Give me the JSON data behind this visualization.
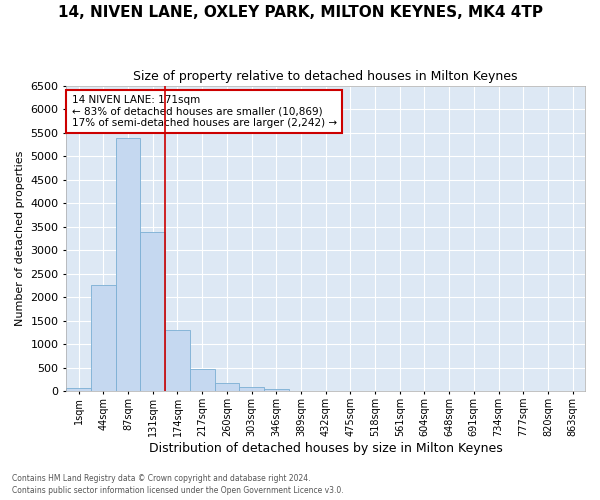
{
  "title": "14, NIVEN LANE, OXLEY PARK, MILTON KEYNES, MK4 4TP",
  "subtitle": "Size of property relative to detached houses in Milton Keynes",
  "xlabel": "Distribution of detached houses by size in Milton Keynes",
  "ylabel": "Number of detached properties",
  "footnote1": "Contains HM Land Registry data © Crown copyright and database right 2024.",
  "footnote2": "Contains public sector information licensed under the Open Government Licence v3.0.",
  "bar_labels": [
    "1sqm",
    "44sqm",
    "87sqm",
    "131sqm",
    "174sqm",
    "217sqm",
    "260sqm",
    "303sqm",
    "346sqm",
    "389sqm",
    "432sqm",
    "475sqm",
    "518sqm",
    "561sqm",
    "604sqm",
    "648sqm",
    "691sqm",
    "734sqm",
    "777sqm",
    "820sqm",
    "863sqm"
  ],
  "bar_values": [
    75,
    2270,
    5390,
    3380,
    1300,
    480,
    185,
    90,
    45,
    0,
    0,
    0,
    0,
    0,
    0,
    0,
    0,
    0,
    0,
    0,
    0
  ],
  "bar_color": "#c5d8f0",
  "bar_edge_color": "#7bafd4",
  "bg_color": "#dde8f4",
  "grid_color": "#ffffff",
  "vline_color": "#cc0000",
  "annotation_line1": "14 NIVEN LANE: 171sqm",
  "annotation_line2": "← 83% of detached houses are smaller (10,869)",
  "annotation_line3": "17% of semi-detached houses are larger (2,242) →",
  "annotation_box_color": "#ffffff",
  "annotation_box_edge": "#cc0000",
  "ylim": [
    0,
    6500
  ],
  "yticks": [
    0,
    500,
    1000,
    1500,
    2000,
    2500,
    3000,
    3500,
    4000,
    4500,
    5000,
    5500,
    6000,
    6500
  ],
  "title_fontsize": 11,
  "subtitle_fontsize": 9,
  "xlabel_fontsize": 9,
  "ylabel_fontsize": 8
}
